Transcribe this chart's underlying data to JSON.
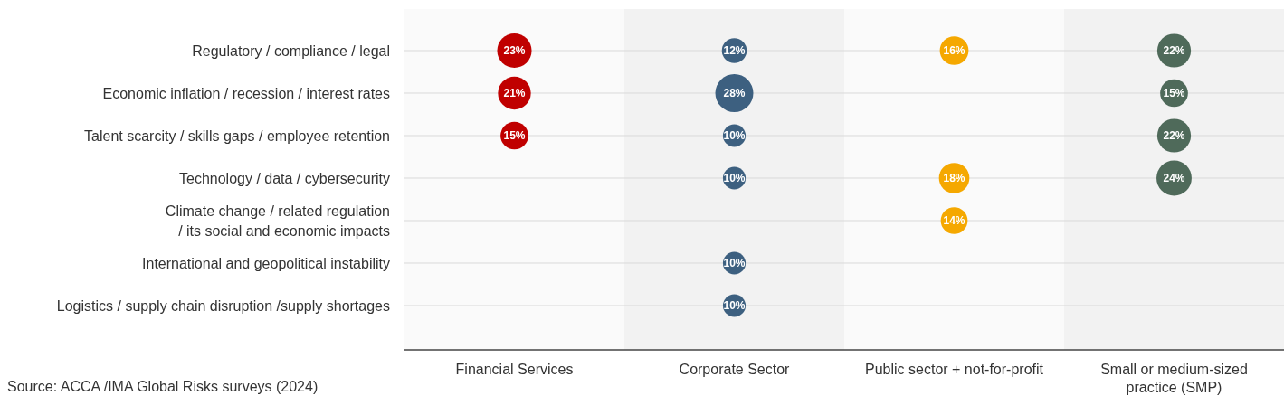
{
  "chart_data": {
    "type": "heatmap",
    "categories": [
      "Financial Services",
      "Corporate Sector",
      "Public sector + not-for-profit",
      "Small or medium-sized practice (SMP)"
    ],
    "y_categories": [
      "Regulatory / compliance / legal",
      "Economic inflation / recession / interest rates",
      "Talent scarcity / skills gaps / employee retention",
      "Technology / data / cybersecurity",
      "Climate change / related regulation / its social and economic impacts",
      "International and geopolitical instability",
      "Logistics / supply chain disruption /supply shortages"
    ],
    "cells": [
      [
        23,
        12,
        16,
        22
      ],
      [
        21,
        28,
        null,
        15
      ],
      [
        15,
        10,
        null,
        22
      ],
      [
        null,
        10,
        18,
        24
      ],
      [
        null,
        null,
        14,
        null
      ],
      [
        null,
        10,
        null,
        null
      ],
      [
        null,
        10,
        null,
        null
      ]
    ],
    "cell_labels": [
      [
        "23%",
        "12%",
        "16%",
        "22%"
      ],
      [
        "21%",
        "28%",
        null,
        "15%"
      ],
      [
        "15%",
        "10%",
        null,
        "22%"
      ],
      [
        null,
        "10%",
        "18%",
        "24%"
      ],
      [
        null,
        null,
        "14%",
        null
      ],
      [
        null,
        "10%",
        null,
        null
      ],
      [
        null,
        "10%",
        null,
        null
      ]
    ],
    "colors": [
      "#c00000",
      "#3d6080",
      "#f5a800",
      "#4f6a5a"
    ],
    "bands": [
      {
        "axis": "x",
        "from": "Corporate Sector",
        "to": "Corporate Sector",
        "color": "#f2f2f2"
      },
      {
        "axis": "x",
        "from": "Small or medium-sized practice (SMP)",
        "to": "Small or medium-sized practice (SMP)",
        "color": "#f2f2f2"
      }
    ],
    "grid": "y",
    "annotations": [
      "Source: ACCA /IMA Global Risks surveys (2024)"
    ]
  }
}
